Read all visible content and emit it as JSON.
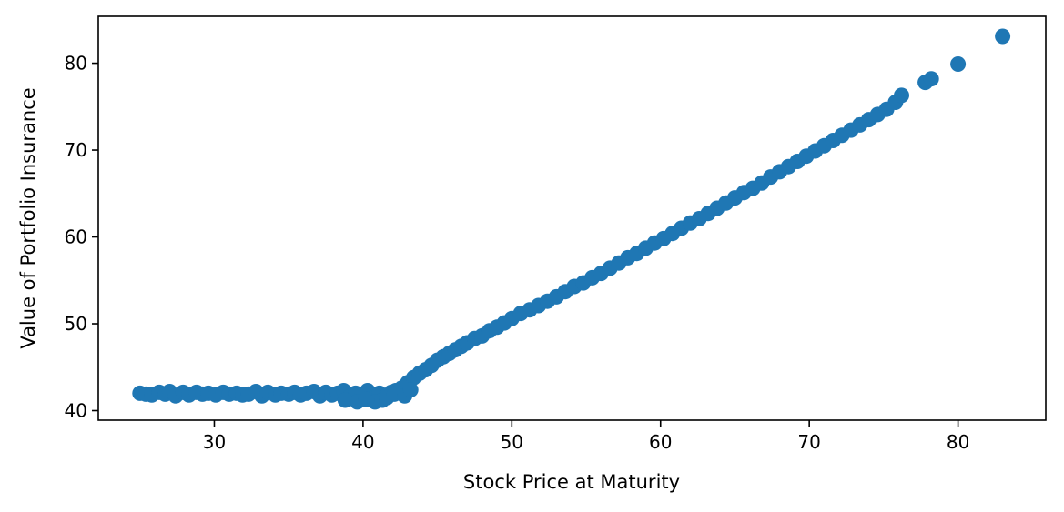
{
  "chart_data": {
    "type": "scatter",
    "title": "",
    "xlabel": "Stock Price at Maturity",
    "ylabel": "Value of Portfolio Insurance",
    "xlim": [
      22.2,
      85.9
    ],
    "ylim": [
      38.9,
      85.4
    ],
    "xticks": [
      30,
      40,
      50,
      60,
      70,
      80
    ],
    "yticks": [
      40,
      50,
      60,
      70,
      80
    ],
    "grid": false,
    "legend": false,
    "series": [
      {
        "color": "#1f77b4",
        "x": [
          25.0,
          25.4,
          25.8,
          26.3,
          26.7,
          27.0,
          27.4,
          27.9,
          28.3,
          28.8,
          29.2,
          29.6,
          30.1,
          30.6,
          31.0,
          31.5,
          31.9,
          32.3,
          32.8,
          33.2,
          33.6,
          34.1,
          34.5,
          35.0,
          35.4,
          35.8,
          36.2,
          36.7,
          37.1,
          37.5,
          37.9,
          38.3,
          38.7,
          39.1,
          39.5,
          39.9,
          40.3,
          40.7,
          41.1,
          41.5,
          41.9,
          42.2,
          42.6,
          43.0,
          43.4,
          43.8,
          44.2,
          44.6,
          45.0,
          45.4,
          45.8,
          46.2,
          46.6,
          47.0,
          47.5,
          48.0,
          48.5,
          49.0,
          49.5,
          50.0,
          50.6,
          51.2,
          51.8,
          52.4,
          53.0,
          53.6,
          54.2,
          54.8,
          55.4,
          56.0,
          56.6,
          57.2,
          57.8,
          58.4,
          59.0,
          59.6,
          60.2,
          60.8,
          61.4,
          62.0,
          62.6,
          63.2,
          63.8,
          64.4,
          65.0,
          65.6,
          66.2,
          66.8,
          67.4,
          68.0,
          68.6,
          69.2,
          69.8,
          70.4,
          71.0,
          71.6,
          72.2,
          72.8,
          73.4,
          74.0,
          74.6,
          75.2,
          75.8,
          76.2,
          77.8,
          78.2,
          80.0,
          83.0,
          38.8,
          39.6,
          40.2,
          40.8,
          41.3,
          41.6,
          42.1,
          42.8,
          43.2
        ],
        "y": [
          42.0,
          41.9,
          41.8,
          42.1,
          41.9,
          42.2,
          41.7,
          42.1,
          41.8,
          42.1,
          41.9,
          42.0,
          41.8,
          42.1,
          41.9,
          42.0,
          41.8,
          41.9,
          42.2,
          41.7,
          42.1,
          41.8,
          42.0,
          41.9,
          42.1,
          41.8,
          42.0,
          42.2,
          41.7,
          42.1,
          41.8,
          42.0,
          42.3,
          41.6,
          42.0,
          41.7,
          42.3,
          41.5,
          42.0,
          41.6,
          42.1,
          42.3,
          42.6,
          43.2,
          43.8,
          44.3,
          44.7,
          45.2,
          45.8,
          46.2,
          46.6,
          47.0,
          47.4,
          47.8,
          48.3,
          48.6,
          49.2,
          49.6,
          50.1,
          50.6,
          51.2,
          51.6,
          52.1,
          52.6,
          53.1,
          53.7,
          54.3,
          54.7,
          55.3,
          55.8,
          56.4,
          57.0,
          57.6,
          58.1,
          58.7,
          59.3,
          59.8,
          60.4,
          61.0,
          61.6,
          62.1,
          62.7,
          63.3,
          63.9,
          64.5,
          65.1,
          65.6,
          66.2,
          66.9,
          67.5,
          68.1,
          68.7,
          69.3,
          69.9,
          70.5,
          71.1,
          71.7,
          72.3,
          72.9,
          73.5,
          74.1,
          74.7,
          75.5,
          76.3,
          77.8,
          78.2,
          79.9,
          83.1,
          41.2,
          41.0,
          41.3,
          41.0,
          41.2,
          41.5,
          41.9,
          41.7,
          42.4
        ]
      }
    ]
  }
}
